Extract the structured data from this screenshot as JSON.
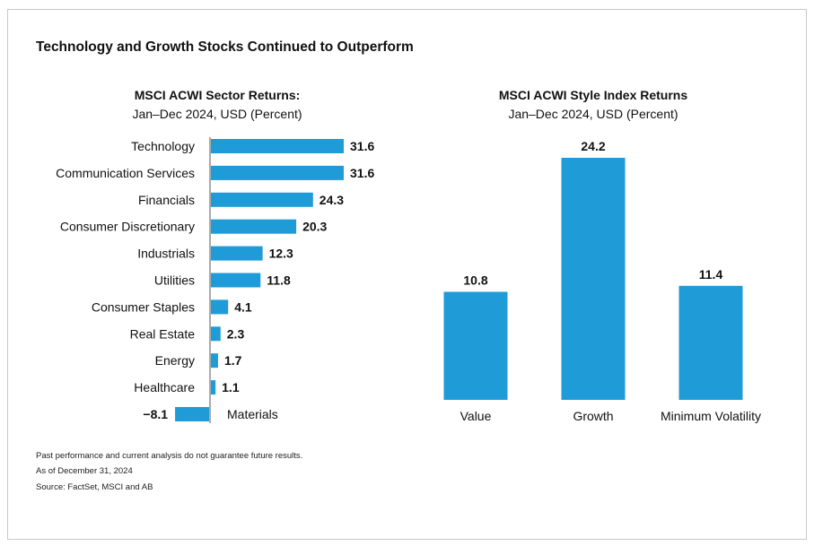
{
  "page": {
    "title": "Technology and Growth Stocks Continued to Outperform",
    "footnotes": [
      "Past performance and current analysis do not guarantee future results.",
      "As of December 31, 2024",
      "Source: FactSet, MSCI and AB"
    ]
  },
  "colors": {
    "bar": "#1f9bd7",
    "axis": "#555555",
    "text": "#111111"
  },
  "chart_data": [
    {
      "type": "bar",
      "orientation": "horizontal",
      "title": "MSCI ACWI Sector Returns:",
      "subtitle": "Jan–Dec 2024, USD (Percent)",
      "categories": [
        "Technology",
        "Communication Services",
        "Financials",
        "Consumer Discretionary",
        "Industrials",
        "Utilities",
        "Consumer Staples",
        "Real Estate",
        "Energy",
        "Healthcare",
        "Materials"
      ],
      "values": [
        31.6,
        31.6,
        24.3,
        20.3,
        12.3,
        11.8,
        4.1,
        2.3,
        1.7,
        1.1,
        -8.1
      ],
      "value_labels": [
        "31.6",
        "31.6",
        "24.3",
        "20.3",
        "12.3",
        "11.8",
        "4.1",
        "2.3",
        "1.7",
        "1.1",
        "−8.1"
      ],
      "xlim": [
        -8.1,
        31.6
      ],
      "grid": false,
      "legend": "none"
    },
    {
      "type": "bar",
      "orientation": "vertical",
      "title": "MSCI ACWI Style Index Returns",
      "subtitle": "Jan–Dec 2024, USD (Percent)",
      "categories": [
        "Value",
        "Growth",
        "Minimum Volatility"
      ],
      "values": [
        10.8,
        24.2,
        11.4
      ],
      "value_labels": [
        "10.8",
        "24.2",
        "11.4"
      ],
      "ylim": [
        0,
        24.2
      ],
      "grid": false,
      "legend": "none"
    }
  ]
}
